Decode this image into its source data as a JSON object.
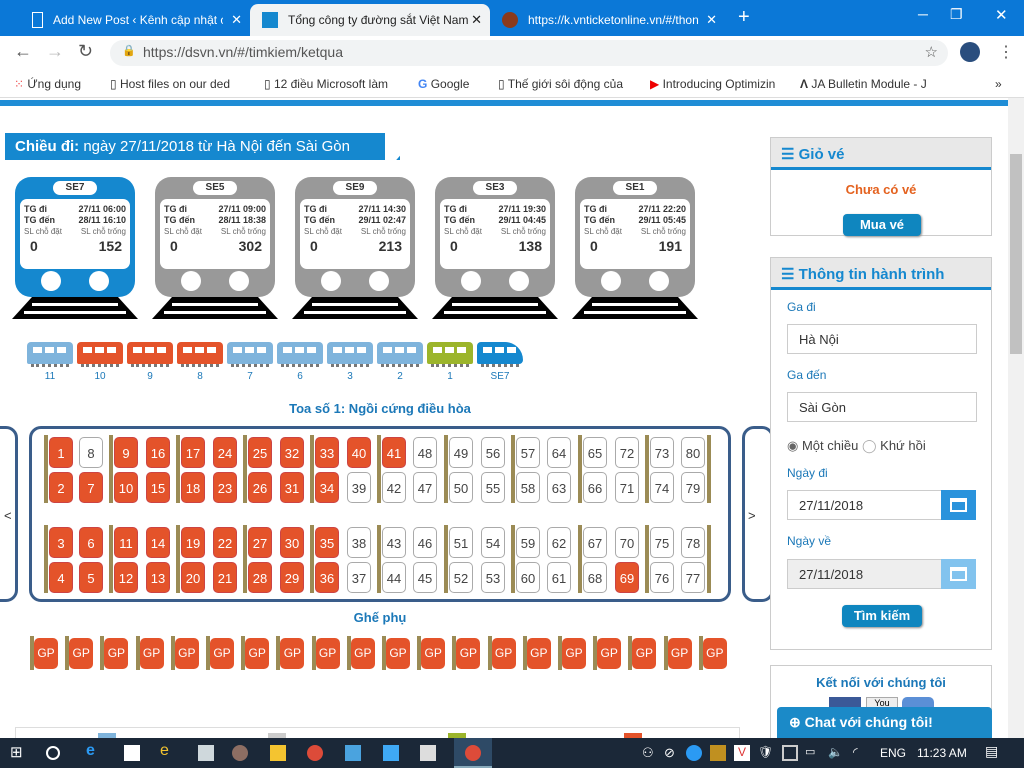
{
  "browser": {
    "tabs": [
      {
        "title": "Add New Post ‹ Kênh cập nhật cô",
        "active": false
      },
      {
        "title": "Tổng công ty đường sắt Việt Nam",
        "active": true
      },
      {
        "title": "https://k.vnticketonline.vn/#/thon",
        "active": false
      }
    ],
    "url": "https://dsvn.vn/#/timkiem/ketqua",
    "bookmarks": [
      "Ứng dụng",
      "Host files on our ded",
      "12 điều Microsoft làm",
      "Google",
      "Thế giới sôi động của",
      "Introducing Optimizin",
      "JA Bulletin Module - J"
    ]
  },
  "heading": {
    "label": "Chiều đi:",
    "text": "ngày 27/11/2018 từ Hà Nội đến Sài Gòn"
  },
  "trains": [
    {
      "name": "SE7",
      "depart": "27/11 06:00",
      "arrive": "28/11 16:10",
      "booked": "0",
      "available": "152",
      "selected": true
    },
    {
      "name": "SE5",
      "depart": "27/11 09:00",
      "arrive": "28/11 18:38",
      "booked": "0",
      "available": "302",
      "selected": false
    },
    {
      "name": "SE9",
      "depart": "27/11 14:30",
      "arrive": "29/11 02:47",
      "booked": "0",
      "available": "213",
      "selected": false
    },
    {
      "name": "SE3",
      "depart": "27/11 19:30",
      "arrive": "29/11 04:45",
      "booked": "0",
      "available": "138",
      "selected": false
    },
    {
      "name": "SE1",
      "depart": "27/11 22:20",
      "arrive": "29/11 05:45",
      "booked": "0",
      "available": "191",
      "selected": false
    }
  ],
  "train_labels": {
    "depart": "TG đi",
    "arrive": "TG đến",
    "booked": "SL chỗ đặt",
    "available": "SL chỗ trống"
  },
  "coaches": [
    {
      "label": "11",
      "color": "#7fb4dc"
    },
    {
      "label": "10",
      "color": "#e4532a"
    },
    {
      "label": "9",
      "color": "#e4532a"
    },
    {
      "label": "8",
      "color": "#e4532a"
    },
    {
      "label": "7",
      "color": "#7fb4dc"
    },
    {
      "label": "6",
      "color": "#7fb4dc"
    },
    {
      "label": "3",
      "color": "#7fb4dc"
    },
    {
      "label": "2",
      "color": "#7fb4dc"
    },
    {
      "label": "1",
      "color": "#9cb52b"
    },
    {
      "label": "SE7",
      "color": "#1588cf"
    }
  ],
  "coach_title": "Toa số 1: Ngồi cứng điều hòa",
  "seat_rows": [
    [
      1,
      8,
      9,
      16,
      17,
      24,
      25,
      32,
      33,
      40,
      41,
      48,
      49,
      56,
      57,
      64,
      65,
      72,
      73,
      80
    ],
    [
      2,
      7,
      10,
      15,
      18,
      23,
      26,
      31,
      34,
      39,
      42,
      47,
      50,
      55,
      58,
      63,
      66,
      71,
      74,
      79
    ],
    [
      3,
      6,
      11,
      14,
      19,
      22,
      27,
      30,
      35,
      38,
      43,
      46,
      51,
      54,
      59,
      62,
      67,
      70,
      75,
      78
    ],
    [
      4,
      5,
      12,
      13,
      20,
      21,
      28,
      29,
      36,
      37,
      44,
      45,
      52,
      53,
      60,
      61,
      68,
      69,
      76,
      77
    ]
  ],
  "sold_seats": [
    1,
    2,
    3,
    4,
    5,
    6,
    7,
    9,
    10,
    11,
    12,
    13,
    14,
    15,
    16,
    17,
    18,
    19,
    20,
    21,
    22,
    23,
    24,
    25,
    26,
    27,
    28,
    29,
    30,
    31,
    32,
    33,
    34,
    35,
    36,
    40,
    41,
    69
  ],
  "nav": {
    "prev": "<",
    "next": ">"
  },
  "extra_title": "Ghế phụ",
  "extra_seats": [
    "GP",
    "GP",
    "GP",
    "GP",
    "GP",
    "GP",
    "GP",
    "GP",
    "GP",
    "GP",
    "GP",
    "GP",
    "GP",
    "GP",
    "GP",
    "GP",
    "GP",
    "GP",
    "GP",
    "GP"
  ],
  "cart": {
    "title": "Giỏ vé",
    "empty": "Chưa có vé",
    "buy": "Mua vé"
  },
  "journey": {
    "title": "Thông tin hành trình",
    "from_label": "Ga đi",
    "from": "Hà Nội",
    "to_label": "Ga đến",
    "to": "Sài Gòn",
    "oneway": "Một chiều",
    "roundtrip": "Khứ hồi",
    "depart_label": "Ngày đi",
    "depart": "27/11/2018",
    "return_label": "Ngày về",
    "return": "27/11/2018",
    "search": "Tìm kiếm"
  },
  "connect": {
    "title": "Kết nối với chúng tôi",
    "youtube": "You"
  },
  "chat": "Chat với chúng tôi!",
  "taskbar": {
    "lang": "ENG",
    "time": "11:23 AM"
  },
  "colors": {
    "brand": "#1588cf",
    "sold": "#e4532a",
    "inactive_train": "#999999"
  }
}
